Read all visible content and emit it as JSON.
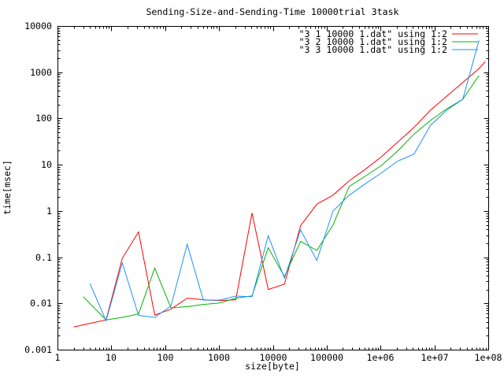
{
  "title": "Sending-Size-and-Sending-Time 10000trial 3task",
  "chart_data": {
    "type": "line",
    "title": "Sending-Size-and-Sending-Time 10000trial 3task",
    "xlabel": "size[byte]",
    "ylabel": "time[msec]",
    "x_scale": "log",
    "y_scale": "log",
    "xlim": [
      1,
      100000000
    ],
    "ylim": [
      0.001,
      10000
    ],
    "grid": false,
    "legend_position": "top-right-inside",
    "x_tick_labels": [
      "1",
      "10",
      "100",
      "1000",
      "10000",
      "100000",
      "1e+06",
      "1e+07",
      "1e+08"
    ],
    "y_tick_labels": [
      "0.001",
      "0.01",
      "0.1",
      "1",
      "10",
      "100",
      "1000",
      "10000"
    ],
    "series": [
      {
        "name": "\"3 1 10000 1.dat\" using 1:2",
        "color": "#ff0000",
        "points": [
          [
            2,
            0.0031
          ],
          [
            4,
            0.0037
          ],
          [
            8,
            0.0044
          ],
          [
            16,
            0.095
          ],
          [
            32,
            0.35
          ],
          [
            64,
            0.0056
          ],
          [
            128,
            0.0075
          ],
          [
            256,
            0.013
          ],
          [
            512,
            0.012
          ],
          [
            1024,
            0.0115
          ],
          [
            2048,
            0.012
          ],
          [
            4096,
            0.9
          ],
          [
            8192,
            0.02
          ],
          [
            16384,
            0.026
          ],
          [
            32768,
            0.48
          ],
          [
            65536,
            1.4
          ],
          [
            131072,
            2.2
          ],
          [
            262144,
            4.5
          ],
          [
            524288,
            8
          ],
          [
            1048576,
            15
          ],
          [
            2097152,
            31
          ],
          [
            4194304,
            64
          ],
          [
            8388608,
            150
          ],
          [
            16777216,
            300
          ],
          [
            33554432,
            600
          ],
          [
            67108864,
            1200
          ],
          [
            88000000,
            1700
          ]
        ]
      },
      {
        "name": "\"3 2 10000 1.dat\" using 1:2",
        "color": "#00b400",
        "points": [
          [
            3,
            0.014
          ],
          [
            8,
            0.0044
          ],
          [
            16,
            0.005
          ],
          [
            32,
            0.0059
          ],
          [
            64,
            0.058
          ],
          [
            128,
            0.008
          ],
          [
            256,
            0.0085
          ],
          [
            512,
            0.0095
          ],
          [
            1024,
            0.0102
          ],
          [
            2048,
            0.013
          ],
          [
            4096,
            0.0145
          ],
          [
            8192,
            0.16
          ],
          [
            16384,
            0.038
          ],
          [
            32768,
            0.22
          ],
          [
            65536,
            0.14
          ],
          [
            131072,
            0.5
          ],
          [
            262144,
            3.4
          ],
          [
            524288,
            5.7
          ],
          [
            1048576,
            9.7
          ],
          [
            2097152,
            20
          ],
          [
            4194304,
            46
          ],
          [
            8388608,
            90
          ],
          [
            16777216,
            160
          ],
          [
            33554432,
            260
          ],
          [
            67108864,
            850
          ]
        ]
      },
      {
        "name": "\"3 3 10000 1.dat\" using 1:2",
        "color": "#1e90ff",
        "points": [
          [
            4,
            0.027
          ],
          [
            8,
            0.0042
          ],
          [
            16,
            0.075
          ],
          [
            32,
            0.0055
          ],
          [
            64,
            0.005
          ],
          [
            128,
            0.0088
          ],
          [
            256,
            0.19
          ],
          [
            512,
            0.0118
          ],
          [
            1024,
            0.0118
          ],
          [
            2048,
            0.0144
          ],
          [
            4096,
            0.014
          ],
          [
            8192,
            0.29
          ],
          [
            16384,
            0.035
          ],
          [
            32768,
            0.39
          ],
          [
            65536,
            0.085
          ],
          [
            131072,
            1.0
          ],
          [
            262144,
            2.2
          ],
          [
            524288,
            3.9
          ],
          [
            1048576,
            6.7
          ],
          [
            2097152,
            12
          ],
          [
            4194304,
            17
          ],
          [
            8388608,
            70
          ],
          [
            16777216,
            150
          ],
          [
            33554432,
            260
          ],
          [
            67108864,
            4900
          ]
        ]
      }
    ]
  }
}
